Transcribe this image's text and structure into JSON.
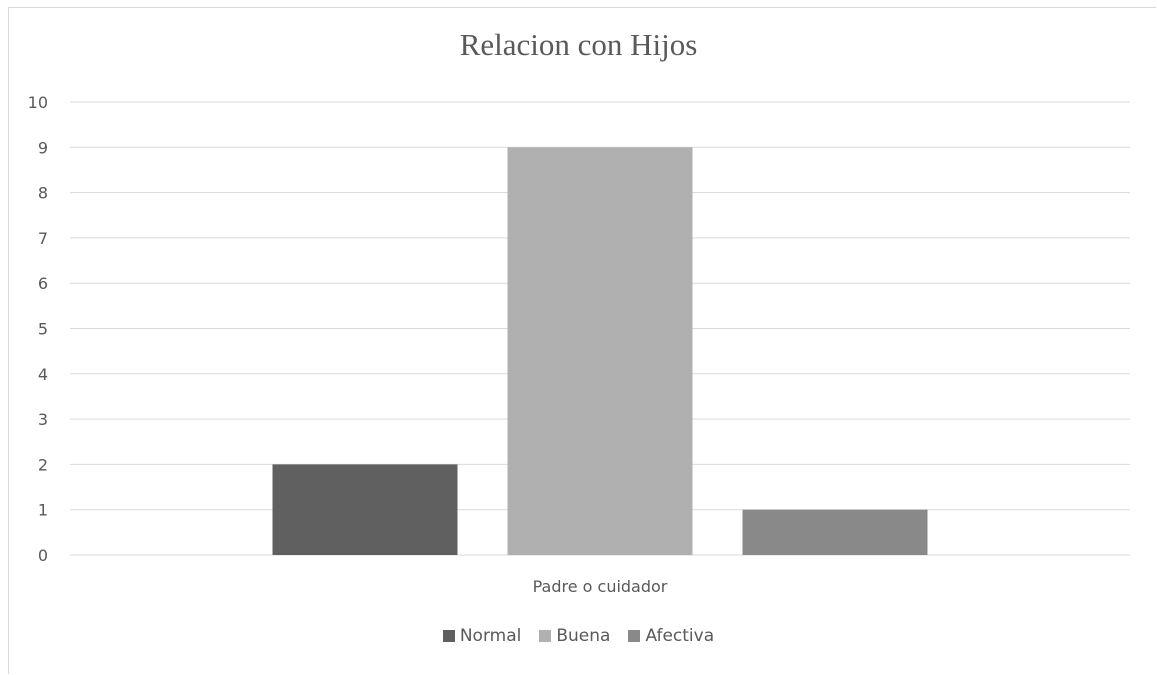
{
  "chart_data": {
    "type": "bar",
    "title": "Relacion con Hijos",
    "categories": [
      "Padre o cuidador"
    ],
    "series": [
      {
        "name": "Normal",
        "values": [
          2
        ],
        "color": "#606060"
      },
      {
        "name": "Buena",
        "values": [
          9
        ],
        "color": "#b0b0b0"
      },
      {
        "name": "Afectiva",
        "values": [
          1
        ],
        "color": "#898989"
      }
    ],
    "ylim": [
      0,
      10
    ],
    "yticks": [
      "0",
      "1",
      "2",
      "3",
      "4",
      "5",
      "6",
      "7",
      "8",
      "9",
      "10"
    ],
    "grid": true,
    "legend": "bottom"
  }
}
